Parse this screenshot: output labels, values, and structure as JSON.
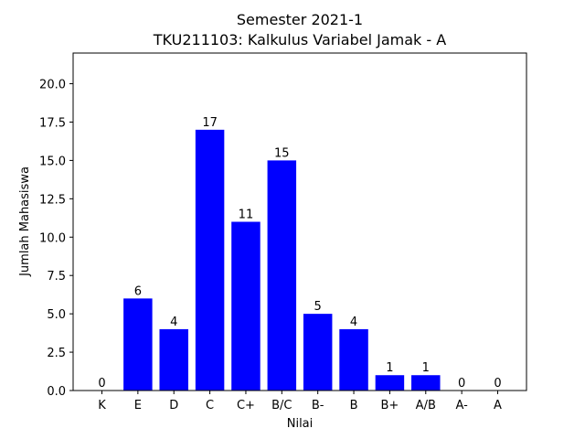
{
  "chart_data": {
    "type": "bar",
    "title_line1": "Semester 2021-1",
    "title_line2": "TKU211103: Kalkulus Variabel Jamak - A",
    "xlabel": "Nilai",
    "ylabel": "Jumlah Mahasiswa",
    "categories": [
      "K",
      "E",
      "D",
      "C",
      "C+",
      "B/C",
      "B-",
      "B",
      "B+",
      "A/B",
      "A-",
      "A"
    ],
    "values": [
      0,
      6,
      4,
      17,
      11,
      15,
      5,
      4,
      1,
      1,
      0,
      0
    ],
    "ylim": [
      0,
      22
    ],
    "yticks": [
      "0.0",
      "2.5",
      "5.0",
      "7.5",
      "10.0",
      "12.5",
      "15.0",
      "17.5",
      "20.0"
    ],
    "bar_color": "#0000ff",
    "grid": false
  }
}
